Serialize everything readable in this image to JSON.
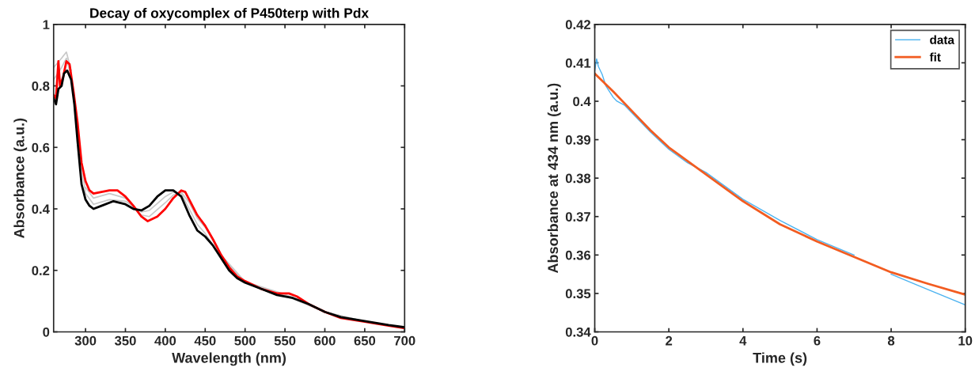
{
  "chart_data": [
    {
      "type": "line",
      "title": "Decay of oxycomplex of P450terp with Pdx",
      "xlabel": "Wavelength (nm)",
      "ylabel": "Absorbance (a.u.)",
      "xlim": [
        260,
        700
      ],
      "ylim": [
        0,
        1
      ],
      "xticks": [
        300,
        350,
        400,
        450,
        500,
        550,
        600,
        650,
        700
      ],
      "yticks": [
        0,
        0.2,
        0.4,
        0.6,
        0.8,
        1
      ],
      "grid": false,
      "legend": false,
      "series": [
        {
          "color": "#c8c8c8",
          "x": [
            260,
            270,
            276,
            282,
            290,
            300,
            310,
            330,
            350,
            370,
            380,
            400,
            410,
            420,
            430,
            440,
            450,
            470,
            500,
            550,
            600,
            650,
            700
          ],
          "values": [
            0.86,
            0.89,
            0.91,
            0.85,
            null,
            0.47,
            0.435,
            0.45,
            0.435,
            0.38,
            0.375,
            0.42,
            0.445,
            0.455,
            0.42,
            0.37,
            0.34,
            0.25,
            0.163,
            0.122,
            0.065,
            0.034,
            0.013
          ]
        },
        {
          "color": "#c8c8c8",
          "x": [
            260,
            270,
            276,
            282,
            290,
            300,
            310,
            330,
            350,
            370,
            380,
            400,
            410,
            420,
            430,
            440,
            450,
            470,
            500,
            550,
            600,
            650,
            700
          ],
          "values": [
            0.82,
            0.86,
            0.89,
            0.83,
            0.64,
            0.45,
            0.415,
            0.43,
            0.425,
            0.39,
            0.395,
            0.44,
            0.455,
            0.45,
            0.4,
            0.35,
            0.32,
            0.243,
            0.161,
            0.118,
            0.065,
            0.034,
            0.014
          ]
        },
        {
          "color": "#ff0000",
          "x": [
            260,
            263,
            266,
            268,
            272,
            276,
            280,
            285,
            290,
            295,
            300,
            305,
            310,
            320,
            330,
            340,
            350,
            360,
            370,
            378,
            390,
            400,
            410,
            420,
            425,
            430,
            440,
            450,
            460,
            470,
            480,
            490,
            500,
            520,
            540,
            555,
            565,
            580,
            600,
            620,
            650,
            680,
            700
          ],
          "values": [
            0.77,
            0.76,
            0.88,
            0.8,
            0.83,
            0.88,
            0.87,
            0.78,
            0.68,
            0.55,
            0.49,
            0.46,
            0.45,
            0.455,
            0.46,
            0.46,
            0.44,
            0.41,
            0.375,
            0.36,
            0.375,
            0.4,
            0.435,
            0.46,
            0.455,
            0.43,
            0.38,
            0.345,
            0.3,
            0.25,
            0.21,
            0.18,
            0.165,
            0.14,
            0.125,
            0.125,
            0.115,
            0.09,
            0.065,
            0.045,
            0.033,
            0.02,
            0.012
          ]
        },
        {
          "color": "#000000",
          "x": [
            260,
            263,
            266,
            270,
            273,
            277,
            282,
            286,
            290,
            295,
            300,
            305,
            310,
            320,
            335,
            350,
            360,
            370,
            380,
            390,
            400,
            410,
            420,
            430,
            440,
            450,
            460,
            470,
            480,
            490,
            500,
            520,
            540,
            560,
            580,
            600,
            620,
            650,
            680,
            700
          ],
          "values": [
            0.76,
            0.74,
            0.79,
            0.8,
            0.84,
            0.85,
            0.82,
            0.74,
            0.62,
            0.48,
            0.43,
            0.41,
            0.4,
            0.41,
            0.425,
            0.415,
            0.4,
            0.395,
            0.41,
            0.44,
            0.46,
            0.46,
            0.44,
            0.38,
            0.33,
            0.31,
            0.28,
            0.24,
            0.2,
            0.175,
            0.16,
            0.14,
            0.12,
            0.11,
            0.09,
            0.065,
            0.048,
            0.035,
            0.022,
            0.015
          ]
        }
      ]
    },
    {
      "type": "line",
      "xlabel": "Time (s)",
      "ylabel": "Absorbance at 434 nm (a.u.)",
      "xlim": [
        0,
        10
      ],
      "ylim": [
        0.34,
        0.42
      ],
      "xticks": [
        0,
        2,
        4,
        6,
        8,
        10
      ],
      "yticks": [
        0.34,
        0.35,
        0.36,
        0.37,
        0.38,
        0.39,
        0.4,
        0.41,
        0.42
      ],
      "grid": false,
      "legend": "top right",
      "series": [
        {
          "name": "data",
          "color": "#4db3f0",
          "x": [
            0,
            0.05,
            0.1,
            0.2,
            0.3,
            0.5,
            0.6,
            0.8,
            1,
            1.5,
            2,
            2.5,
            3,
            4,
            5,
            6,
            7,
            7.5,
            8,
            9,
            10
          ],
          "values": [
            0.408,
            0.411,
            0.409,
            0.407,
            0.404,
            0.401,
            0.4,
            0.399,
            0.397,
            0.392,
            0.3875,
            0.384,
            0.3815,
            0.3745,
            0.369,
            0.364,
            0.36,
            null,
            0.355,
            0.351,
            0.347
          ]
        },
        {
          "name": "fit",
          "color": "#f25c21",
          "x": [
            0,
            0.5,
            1,
            1.5,
            2,
            3,
            4,
            5,
            6,
            7,
            8,
            9,
            10
          ],
          "values": [
            0.4072,
            0.4025,
            0.3975,
            0.3925,
            0.388,
            0.381,
            0.374,
            0.368,
            0.3635,
            0.3595,
            0.3555,
            0.3525,
            0.3497
          ]
        }
      ]
    }
  ]
}
